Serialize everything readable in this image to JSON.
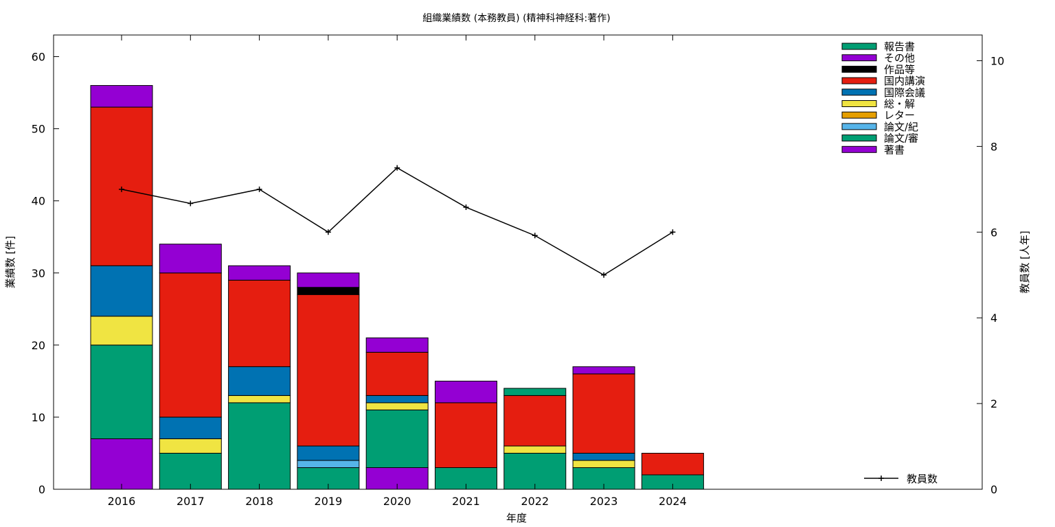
{
  "chart_data": {
    "type": "bar",
    "stacked": true,
    "title": "組織業績数 (本務教員) (精神科神経科:著作)",
    "xlabel": "年度",
    "ylabel": "業績数 [件]",
    "y2label": "教員数 [人年]",
    "categories": [
      "2016",
      "2017",
      "2018",
      "2019",
      "2020",
      "2021",
      "2022",
      "2023",
      "2024"
    ],
    "ylim": [
      0,
      63
    ],
    "y2lim": [
      0,
      10.6
    ],
    "yticks": [
      0,
      10,
      20,
      30,
      40,
      50,
      60
    ],
    "y2ticks": [
      0,
      2,
      4,
      6,
      8,
      10
    ],
    "grid": false,
    "legend_position": "top-right",
    "series": [
      {
        "name": "著書",
        "color": "#9400d3",
        "values": [
          7,
          0,
          0,
          0,
          3,
          0,
          0,
          0,
          0
        ]
      },
      {
        "name": "論文/審",
        "color": "#009e73",
        "values": [
          13,
          5,
          12,
          3,
          8,
          3,
          5,
          3,
          2
        ]
      },
      {
        "name": "論文/紀",
        "color": "#56b4e9",
        "values": [
          0,
          0,
          0,
          1,
          0,
          0,
          0,
          0,
          0
        ]
      },
      {
        "name": "レター",
        "color": "#e69f00",
        "values": [
          0,
          0,
          0,
          0,
          0,
          0,
          0,
          0,
          0
        ]
      },
      {
        "name": "総・解",
        "color": "#f0e442",
        "values": [
          4,
          2,
          1,
          0,
          1,
          0,
          1,
          1,
          0
        ]
      },
      {
        "name": "国際会議",
        "color": "#0072b2",
        "values": [
          7,
          3,
          4,
          2,
          1,
          0,
          0,
          1,
          0
        ]
      },
      {
        "name": "国内講演",
        "color": "#e51e10",
        "values": [
          22,
          20,
          12,
          21,
          6,
          9,
          7,
          11,
          3
        ]
      },
      {
        "name": "作品等",
        "color": "#000000",
        "values": [
          0,
          0,
          0,
          1,
          0,
          0,
          0,
          0,
          0
        ]
      },
      {
        "name": "その他",
        "color": "#9400d3",
        "values": [
          3,
          4,
          2,
          2,
          2,
          3,
          0,
          1,
          0
        ]
      },
      {
        "name": "報告書",
        "color": "#009e73",
        "values": [
          0,
          0,
          0,
          0,
          0,
          0,
          1,
          0,
          0
        ]
      }
    ],
    "line": {
      "name": "教員数",
      "axis": "right",
      "values": [
        7.0,
        6.67,
        7.0,
        6.0,
        7.5,
        6.58,
        5.92,
        5.0,
        6.0
      ]
    }
  }
}
